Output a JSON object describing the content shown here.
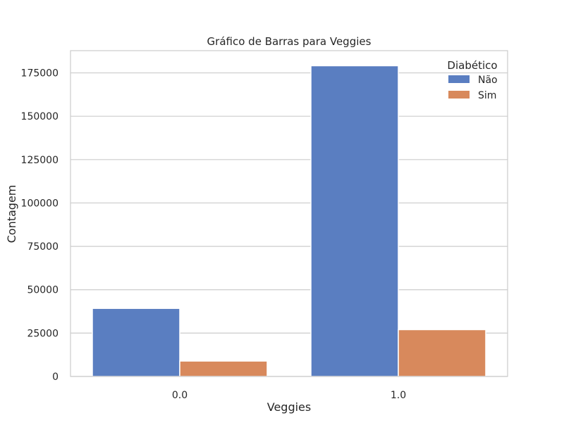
{
  "chart_data": {
    "type": "bar",
    "title": "Gráfico de Barras para Veggies",
    "xlabel": "Veggies",
    "ylabel": "Contagem",
    "categories": [
      "0.0",
      "1.0"
    ],
    "series": [
      {
        "name": "Não",
        "values": [
          39230,
          179104
        ],
        "color": "#5a7ec1"
      },
      {
        "name": "Sim",
        "values": [
          8878,
          26982
        ],
        "color": "#d8895c"
      }
    ],
    "ylim": [
      0,
      187800
    ],
    "yticks": [
      0,
      25000,
      50000,
      75000,
      100000,
      125000,
      150000,
      175000
    ],
    "grid": true,
    "legend": {
      "title": "Diabético",
      "placement": "top-right"
    }
  }
}
